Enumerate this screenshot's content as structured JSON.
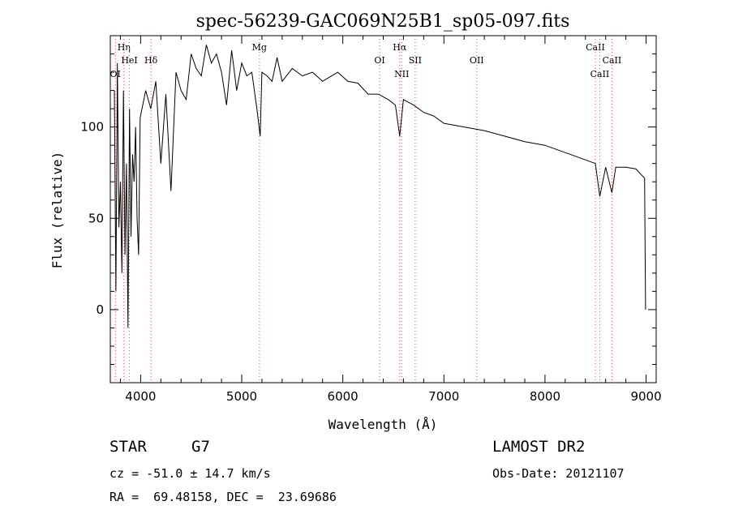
{
  "chart_data": {
    "type": "line",
    "title": "spec-56239-GAC069N25B1_sp05-097.fits",
    "xlabel": "Wavelength (Å)",
    "ylabel": "Flux (relative)",
    "xlim": [
      3700,
      9100
    ],
    "ylim": [
      -40,
      150
    ],
    "xticks": [
      4000,
      5000,
      6000,
      7000,
      8000,
      9000
    ],
    "xtick_labels": [
      "4000",
      "5000",
      "6000",
      "7000",
      "8000",
      "9000"
    ],
    "yticks": [
      0,
      50,
      100
    ],
    "ytick_labels": [
      "0",
      "50",
      "100"
    ],
    "grid": false,
    "series": [
      {
        "color": "#000000",
        "x": [
          3740,
          3755,
          3770,
          3785,
          3800,
          3815,
          3830,
          3845,
          3860,
          3875,
          3890,
          3905,
          3920,
          3935,
          3950,
          3965,
          3980,
          3995,
          4050,
          4100,
          4150,
          4200,
          4250,
          4300,
          4350,
          4400,
          4450,
          4500,
          4550,
          4600,
          4650,
          4700,
          4750,
          4800,
          4850,
          4900,
          4950,
          5000,
          5050,
          5100,
          5150,
          5183,
          5200,
          5250,
          5300,
          5350,
          5400,
          5500,
          5600,
          5700,
          5800,
          5890,
          5950,
          6050,
          6150,
          6250,
          6350,
          6450,
          6520,
          6563,
          6600,
          6700,
          6800,
          6900,
          7000,
          7200,
          7400,
          7600,
          7800,
          8000,
          8200,
          8400,
          8498,
          8542,
          8600,
          8662,
          8700,
          8800,
          8900,
          8950,
          8985,
          8995
        ],
        "y": [
          120,
          10,
          135,
          45,
          70,
          20,
          120,
          30,
          80,
          -10,
          110,
          40,
          85,
          70,
          100,
          50,
          30,
          105,
          120,
          110,
          125,
          80,
          118,
          65,
          130,
          120,
          115,
          140,
          132,
          128,
          145,
          135,
          140,
          130,
          112,
          142,
          120,
          135,
          128,
          130,
          110,
          95,
          130,
          128,
          125,
          138,
          125,
          132,
          128,
          130,
          125,
          128,
          130,
          125,
          124,
          118,
          118,
          115,
          112,
          95,
          115,
          112,
          108,
          106,
          102,
          100,
          98,
          95,
          92,
          90,
          86,
          82,
          80,
          62,
          78,
          64,
          78,
          78,
          77,
          74,
          72,
          0
        ]
      }
    ],
    "spectral_lines": [
      {
        "label": "Hη",
        "wavelength": 3835
      },
      {
        "label": "OI",
        "wavelength": 3750
      },
      {
        "label": "HeI",
        "wavelength": 3889
      },
      {
        "label": "Hδ",
        "wavelength": 4102
      },
      {
        "label": "Mg",
        "wavelength": 5175
      },
      {
        "label": "OI",
        "wavelength": 6364
      },
      {
        "label": "Hα",
        "wavelength": 6563
      },
      {
        "label": "NII",
        "wavelength": 6583
      },
      {
        "label": "SII",
        "wavelength": 6716
      },
      {
        "label": "OII",
        "wavelength": 7325
      },
      {
        "label": "CaII",
        "wavelength": 8498
      },
      {
        "label": "CaII",
        "wavelength": 8542
      },
      {
        "label": "CaII",
        "wavelength": 8662
      }
    ]
  },
  "footer": {
    "object_class": "STAR",
    "subclass": "G7",
    "release": "LAMOST DR2",
    "cz_text": "cz = -51.0 ± 14.7 km/s",
    "obs_date_text": "Obs-Date: 20121107",
    "coords_text": "RA =  69.48158, DEC =  23.69686"
  }
}
